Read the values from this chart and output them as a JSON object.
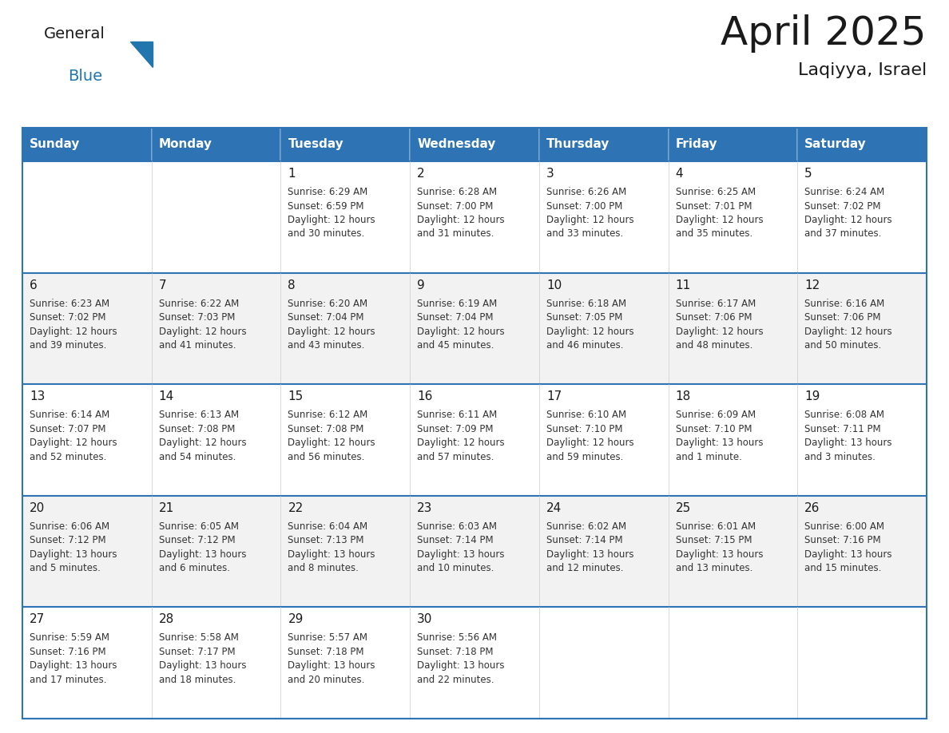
{
  "title": "April 2025",
  "subtitle": "Laqiyya, Israel",
  "header_color": "#2E74B5",
  "header_text_color": "#FFFFFF",
  "cell_bg_even": "#F2F2F2",
  "cell_bg_odd": "#FFFFFF",
  "border_color": "#2E74B5",
  "text_color": "#333333",
  "days_of_week": [
    "Sunday",
    "Monday",
    "Tuesday",
    "Wednesday",
    "Thursday",
    "Friday",
    "Saturday"
  ],
  "weeks": [
    [
      {
        "day": "",
        "info": ""
      },
      {
        "day": "",
        "info": ""
      },
      {
        "day": "1",
        "info": "Sunrise: 6:29 AM\nSunset: 6:59 PM\nDaylight: 12 hours\nand 30 minutes."
      },
      {
        "day": "2",
        "info": "Sunrise: 6:28 AM\nSunset: 7:00 PM\nDaylight: 12 hours\nand 31 minutes."
      },
      {
        "day": "3",
        "info": "Sunrise: 6:26 AM\nSunset: 7:00 PM\nDaylight: 12 hours\nand 33 minutes."
      },
      {
        "day": "4",
        "info": "Sunrise: 6:25 AM\nSunset: 7:01 PM\nDaylight: 12 hours\nand 35 minutes."
      },
      {
        "day": "5",
        "info": "Sunrise: 6:24 AM\nSunset: 7:02 PM\nDaylight: 12 hours\nand 37 minutes."
      }
    ],
    [
      {
        "day": "6",
        "info": "Sunrise: 6:23 AM\nSunset: 7:02 PM\nDaylight: 12 hours\nand 39 minutes."
      },
      {
        "day": "7",
        "info": "Sunrise: 6:22 AM\nSunset: 7:03 PM\nDaylight: 12 hours\nand 41 minutes."
      },
      {
        "day": "8",
        "info": "Sunrise: 6:20 AM\nSunset: 7:04 PM\nDaylight: 12 hours\nand 43 minutes."
      },
      {
        "day": "9",
        "info": "Sunrise: 6:19 AM\nSunset: 7:04 PM\nDaylight: 12 hours\nand 45 minutes."
      },
      {
        "day": "10",
        "info": "Sunrise: 6:18 AM\nSunset: 7:05 PM\nDaylight: 12 hours\nand 46 minutes."
      },
      {
        "day": "11",
        "info": "Sunrise: 6:17 AM\nSunset: 7:06 PM\nDaylight: 12 hours\nand 48 minutes."
      },
      {
        "day": "12",
        "info": "Sunrise: 6:16 AM\nSunset: 7:06 PM\nDaylight: 12 hours\nand 50 minutes."
      }
    ],
    [
      {
        "day": "13",
        "info": "Sunrise: 6:14 AM\nSunset: 7:07 PM\nDaylight: 12 hours\nand 52 minutes."
      },
      {
        "day": "14",
        "info": "Sunrise: 6:13 AM\nSunset: 7:08 PM\nDaylight: 12 hours\nand 54 minutes."
      },
      {
        "day": "15",
        "info": "Sunrise: 6:12 AM\nSunset: 7:08 PM\nDaylight: 12 hours\nand 56 minutes."
      },
      {
        "day": "16",
        "info": "Sunrise: 6:11 AM\nSunset: 7:09 PM\nDaylight: 12 hours\nand 57 minutes."
      },
      {
        "day": "17",
        "info": "Sunrise: 6:10 AM\nSunset: 7:10 PM\nDaylight: 12 hours\nand 59 minutes."
      },
      {
        "day": "18",
        "info": "Sunrise: 6:09 AM\nSunset: 7:10 PM\nDaylight: 13 hours\nand 1 minute."
      },
      {
        "day": "19",
        "info": "Sunrise: 6:08 AM\nSunset: 7:11 PM\nDaylight: 13 hours\nand 3 minutes."
      }
    ],
    [
      {
        "day": "20",
        "info": "Sunrise: 6:06 AM\nSunset: 7:12 PM\nDaylight: 13 hours\nand 5 minutes."
      },
      {
        "day": "21",
        "info": "Sunrise: 6:05 AM\nSunset: 7:12 PM\nDaylight: 13 hours\nand 6 minutes."
      },
      {
        "day": "22",
        "info": "Sunrise: 6:04 AM\nSunset: 7:13 PM\nDaylight: 13 hours\nand 8 minutes."
      },
      {
        "day": "23",
        "info": "Sunrise: 6:03 AM\nSunset: 7:14 PM\nDaylight: 13 hours\nand 10 minutes."
      },
      {
        "day": "24",
        "info": "Sunrise: 6:02 AM\nSunset: 7:14 PM\nDaylight: 13 hours\nand 12 minutes."
      },
      {
        "day": "25",
        "info": "Sunrise: 6:01 AM\nSunset: 7:15 PM\nDaylight: 13 hours\nand 13 minutes."
      },
      {
        "day": "26",
        "info": "Sunrise: 6:00 AM\nSunset: 7:16 PM\nDaylight: 13 hours\nand 15 minutes."
      }
    ],
    [
      {
        "day": "27",
        "info": "Sunrise: 5:59 AM\nSunset: 7:16 PM\nDaylight: 13 hours\nand 17 minutes."
      },
      {
        "day": "28",
        "info": "Sunrise: 5:58 AM\nSunset: 7:17 PM\nDaylight: 13 hours\nand 18 minutes."
      },
      {
        "day": "29",
        "info": "Sunrise: 5:57 AM\nSunset: 7:18 PM\nDaylight: 13 hours\nand 20 minutes."
      },
      {
        "day": "30",
        "info": "Sunrise: 5:56 AM\nSunset: 7:18 PM\nDaylight: 13 hours\nand 22 minutes."
      },
      {
        "day": "",
        "info": ""
      },
      {
        "day": "",
        "info": ""
      },
      {
        "day": "",
        "info": ""
      }
    ]
  ],
  "logo_general_color": "#1a1a1a",
  "logo_blue_color": "#2176AE",
  "title_fontsize": 36,
  "subtitle_fontsize": 16,
  "header_fontsize": 11,
  "day_number_fontsize": 11,
  "info_fontsize": 8.5
}
